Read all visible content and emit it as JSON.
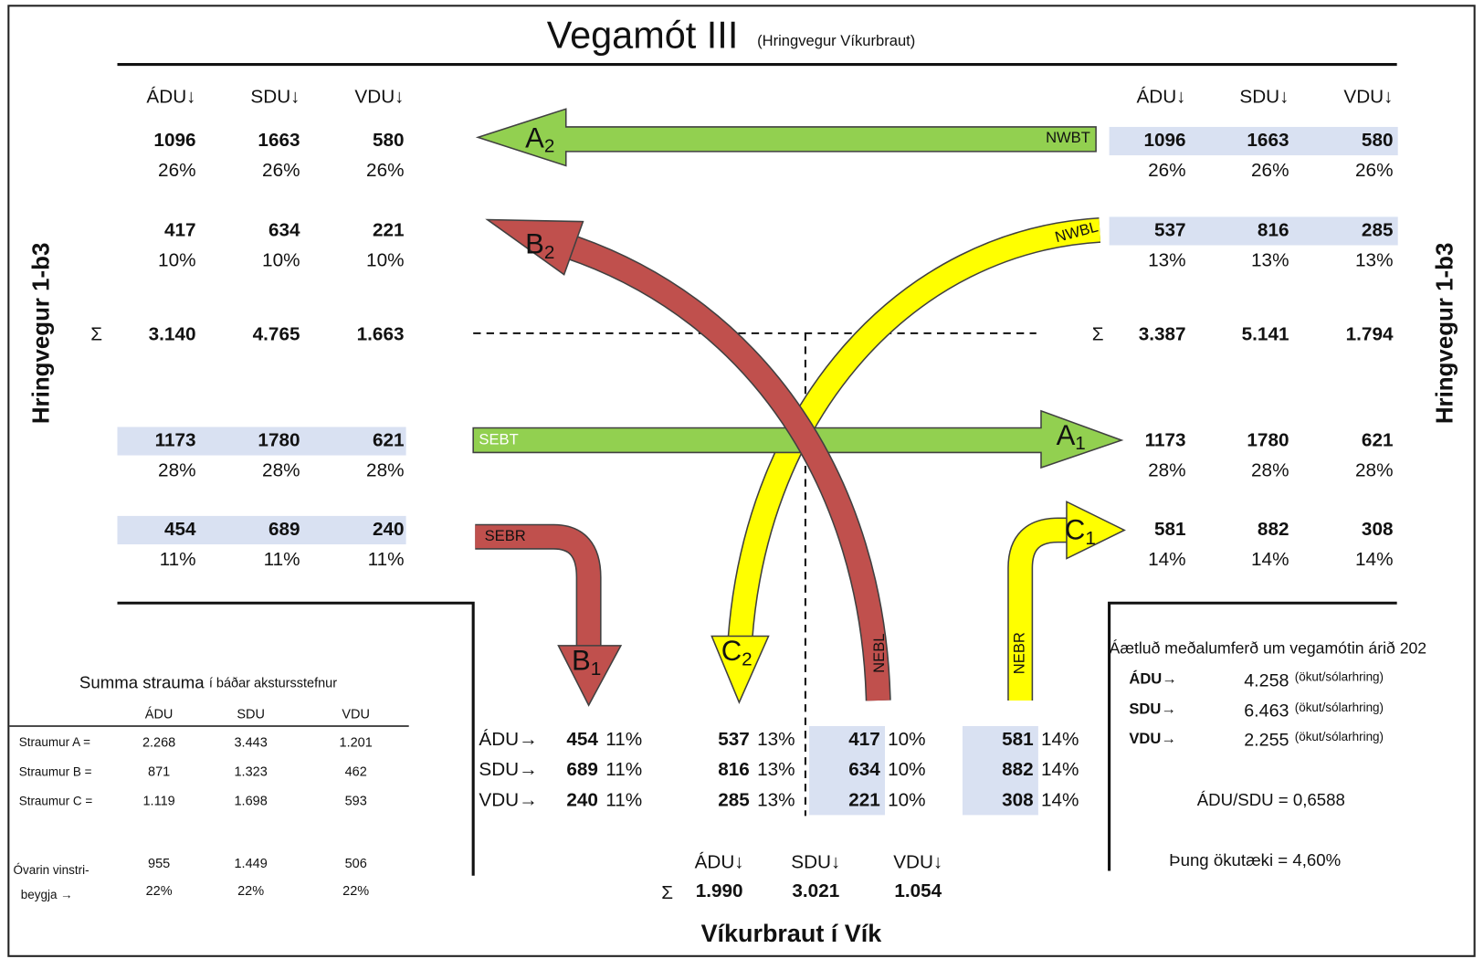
{
  "title": "Vegamót III",
  "subtitle": "(Hringvegur Víkurbraut)",
  "roads": {
    "left": "Hringvegur 1-b3",
    "right": "Hringvegur 1-b3",
    "bottom": "Víkurbraut í Vík"
  },
  "headers": [
    "ÁDU↓",
    "SDU↓",
    "VDU↓"
  ],
  "sigma": "Σ",
  "left": {
    "rows": [
      {
        "values": [
          "1096",
          "1663",
          "580"
        ],
        "percents": [
          "26%",
          "26%",
          "26%"
        ],
        "highlight": false
      },
      {
        "values": [
          "417",
          "634",
          "221"
        ],
        "percents": [
          "10%",
          "10%",
          "10%"
        ],
        "highlight": false
      },
      {
        "values": [
          "1173",
          "1780",
          "621"
        ],
        "percents": [
          "28%",
          "28%",
          "28%"
        ],
        "highlight": true
      },
      {
        "values": [
          "454",
          "689",
          "240"
        ],
        "percents": [
          "11%",
          "11%",
          "11%"
        ],
        "highlight": true
      }
    ],
    "sum": [
      "3.140",
      "4.765",
      "1.663"
    ]
  },
  "right": {
    "rows": [
      {
        "values": [
          "1096",
          "1663",
          "580"
        ],
        "percents": [
          "26%",
          "26%",
          "26%"
        ],
        "highlight": true
      },
      {
        "values": [
          "537",
          "816",
          "285"
        ],
        "percents": [
          "13%",
          "13%",
          "13%"
        ],
        "highlight": true
      },
      {
        "values": [
          "1173",
          "1780",
          "621"
        ],
        "percents": [
          "28%",
          "28%",
          "28%"
        ],
        "highlight": false
      },
      {
        "values": [
          "581",
          "882",
          "308"
        ],
        "percents": [
          "14%",
          "14%",
          "14%"
        ],
        "highlight": false
      }
    ],
    "sum": [
      "3.387",
      "5.141",
      "1.794"
    ]
  },
  "bottom": {
    "flow_labels": [
      "ÁDU→",
      "SDU→",
      "VDU→"
    ],
    "groups": [
      {
        "values": [
          "454",
          "689",
          "240"
        ],
        "percent": "11%",
        "highlight": false
      },
      {
        "values": [
          "537",
          "816",
          "285"
        ],
        "percent": "13%",
        "highlight": false
      },
      {
        "values": [
          "417",
          "634",
          "221"
        ],
        "percent": "10%",
        "highlight": true
      },
      {
        "values": [
          "581",
          "882",
          "308"
        ],
        "percent": "14%",
        "highlight": true
      }
    ],
    "sum": [
      "1.990",
      "3.021",
      "1.054"
    ]
  },
  "arrows": [
    {
      "code": "NWBT",
      "letter": "A",
      "sub": "2"
    },
    {
      "code": "NWBL",
      "letter": "C",
      "sub": "2"
    },
    {
      "code": "SEBT",
      "letter": "A",
      "sub": "1"
    },
    {
      "code": "SEBR",
      "letter": "B",
      "sub": "1"
    },
    {
      "code": "NEBL",
      "letter": "B",
      "sub": "2"
    },
    {
      "code": "NEBR",
      "letter": "C",
      "sub": "1"
    }
  ],
  "summa": {
    "title": "Summa strauma",
    "note": "í báðar akstursstefnur",
    "headers": [
      "ÁDU",
      "SDU",
      "VDU"
    ],
    "rows": [
      {
        "label": "Straumur A =",
        "values": [
          "2.268",
          "3.443",
          "1.201"
        ]
      },
      {
        "label": "Straumur B =",
        "values": [
          "871",
          "1.323",
          "462"
        ]
      },
      {
        "label": "Straumur C =",
        "values": [
          "1.119",
          "1.698",
          "593"
        ]
      }
    ],
    "unprotected": {
      "label": [
        "Óvarin vinstri-",
        "beygja →"
      ],
      "values": [
        "955",
        "1.449",
        "506"
      ],
      "percents": [
        "22%",
        "22%",
        "22%"
      ]
    }
  },
  "info": {
    "title": "Áætluð meðalumferð um vegamótin árið 202",
    "rows": [
      {
        "label": "ÁDU→",
        "value": "4.258",
        "unit": "(ökut/sólarhring)"
      },
      {
        "label": "SDU→",
        "value": "6.463",
        "unit": "(ökut/sólarhring)"
      },
      {
        "label": "VDU→",
        "value": "2.255",
        "unit": "(ökut/sólarhring)"
      }
    ],
    "ratio": "ÁDU/SDU = 0,6588",
    "heavy": "Þung ökutæki = 4,60%"
  }
}
